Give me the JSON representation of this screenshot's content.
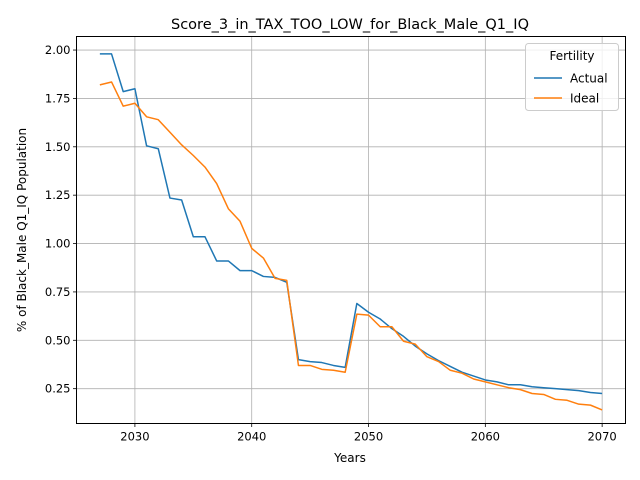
{
  "chart_data": {
    "type": "line",
    "title": "Score_3_in_TAX_TOO_LOW_for_Black_Male_Q1_IQ",
    "xlabel": "Years",
    "ylabel": "% of Black_Male Q1_IQ Population",
    "xlim": [
      2025,
      2072
    ],
    "ylim": [
      0.07,
      2.07
    ],
    "xticks": [
      2030,
      2040,
      2050,
      2060,
      2070
    ],
    "yticks": [
      0.25,
      0.5,
      0.75,
      1.0,
      1.25,
      1.5,
      1.75,
      2.0
    ],
    "ytick_labels": [
      "0.25",
      "0.50",
      "0.75",
      "1.00",
      "1.25",
      "1.50",
      "1.75",
      "2.00"
    ],
    "grid": true,
    "legend": {
      "title": "Fertility",
      "position": "top-right"
    },
    "x": [
      2027,
      2028,
      2029,
      2030,
      2031,
      2032,
      2033,
      2034,
      2035,
      2036,
      2037,
      2038,
      2039,
      2040,
      2041,
      2042,
      2043,
      2044,
      2045,
      2046,
      2047,
      2048,
      2049,
      2050,
      2051,
      2052,
      2053,
      2054,
      2055,
      2056,
      2057,
      2058,
      2059,
      2060,
      2061,
      2062,
      2063,
      2064,
      2065,
      2066,
      2067,
      2068,
      2069,
      2070
    ],
    "series": [
      {
        "name": "Actual",
        "color": "#1f77b4",
        "values": [
          1.98,
          1.98,
          1.785,
          1.8,
          1.505,
          1.49,
          1.235,
          1.225,
          1.035,
          1.035,
          0.91,
          0.91,
          0.86,
          0.86,
          0.83,
          0.825,
          0.8,
          0.4,
          0.39,
          0.385,
          0.37,
          0.36,
          0.69,
          0.645,
          0.61,
          0.56,
          0.52,
          0.47,
          0.43,
          0.395,
          0.365,
          0.335,
          0.315,
          0.295,
          0.285,
          0.27,
          0.27,
          0.26,
          0.255,
          0.25,
          0.245,
          0.24,
          0.23,
          0.225
        ]
      },
      {
        "name": "Ideal",
        "color": "#ff7f0e",
        "values": [
          1.82,
          1.835,
          1.71,
          1.725,
          1.655,
          1.64,
          1.575,
          1.51,
          1.455,
          1.395,
          1.31,
          1.18,
          1.115,
          0.975,
          0.925,
          0.82,
          0.81,
          0.37,
          0.37,
          0.35,
          0.345,
          0.335,
          0.635,
          0.63,
          0.57,
          0.57,
          0.495,
          0.48,
          0.415,
          0.39,
          0.345,
          0.33,
          0.3,
          0.285,
          0.27,
          0.255,
          0.245,
          0.225,
          0.22,
          0.195,
          0.19,
          0.17,
          0.165,
          0.14
        ]
      }
    ]
  }
}
